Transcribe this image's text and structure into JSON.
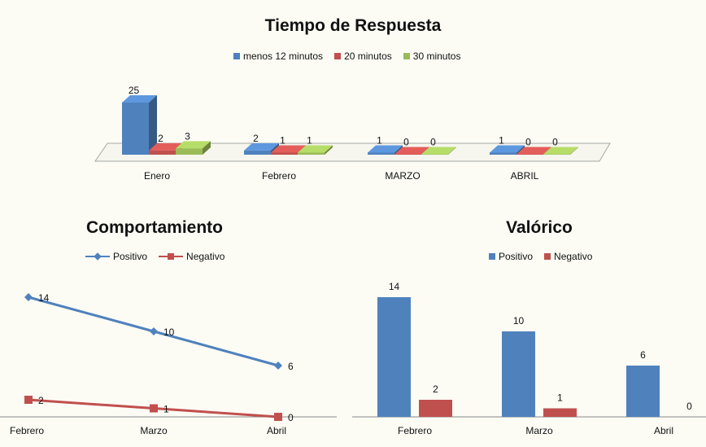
{
  "chart_data": [
    {
      "type": "bar",
      "title": "Tiempo de  Respuesta",
      "categories": [
        "Enero",
        "Febrero",
        "MARZO",
        "ABRIL"
      ],
      "series": [
        {
          "name": "menos 12 minutos",
          "values": [
            25,
            2,
            1,
            1
          ],
          "color": "#4f81bd"
        },
        {
          "name": "20 minutos",
          "values": [
            2,
            1,
            0,
            0
          ],
          "color": "#c0504d"
        },
        {
          "name": "30 minutos",
          "values": [
            3,
            1,
            0,
            0
          ],
          "color": "#9bbb59"
        }
      ],
      "style": "3d-clustered"
    },
    {
      "type": "line",
      "title": "Comportamiento",
      "categories": [
        "Febrero",
        "Marzo",
        "Abril"
      ],
      "series": [
        {
          "name": "Positivo",
          "values": [
            14,
            10,
            6
          ],
          "color": "#4f81bd",
          "marker": "diamond"
        },
        {
          "name": "Negativo",
          "values": [
            2,
            1,
            0
          ],
          "color": "#c0504d",
          "marker": "square"
        }
      ]
    },
    {
      "type": "bar",
      "title": "Valórico",
      "categories": [
        "Febrero",
        "Marzo",
        "Abril"
      ],
      "series": [
        {
          "name": "Positivo",
          "values": [
            14,
            10,
            6
          ],
          "color": "#4f81bd"
        },
        {
          "name": "Negativo",
          "values": [
            2,
            1,
            0
          ],
          "color": "#c0504d"
        }
      ]
    }
  ]
}
